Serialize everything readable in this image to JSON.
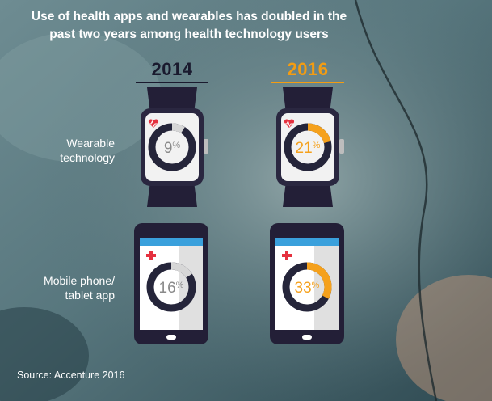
{
  "title_line1": "Use of health apps and wearables has doubled in the",
  "title_line2": "past two years among health technology users",
  "years": [
    {
      "label": "2014",
      "color": "#1a1a2e"
    },
    {
      "label": "2016",
      "color": "#f39c12"
    }
  ],
  "row_labels": {
    "wearable_line1": "Wearable",
    "wearable_line2": "technology",
    "mobile_line1": "Mobile phone/",
    "mobile_line2": "tablet app"
  },
  "source": "Source: Accenture 2016",
  "colors": {
    "dark_ring": "#25253a",
    "ring_track": "#d7d7d7",
    "accent_2016": "#f5a11c",
    "device_frame": "#231f37",
    "screen_bar": "#3aa0dc",
    "cross": "#e5313f"
  },
  "chart_data": {
    "type": "donut",
    "title": "Use of health apps and wearables has doubled in the past two years among health technology users",
    "categories": [
      "Wearable technology",
      "Mobile phone/tablet app"
    ],
    "series": [
      {
        "name": "2014",
        "values": [
          9,
          16
        ]
      },
      {
        "name": "2016",
        "values": [
          21,
          33
        ]
      }
    ],
    "unit": "%",
    "source": "Source: Accenture 2016"
  }
}
